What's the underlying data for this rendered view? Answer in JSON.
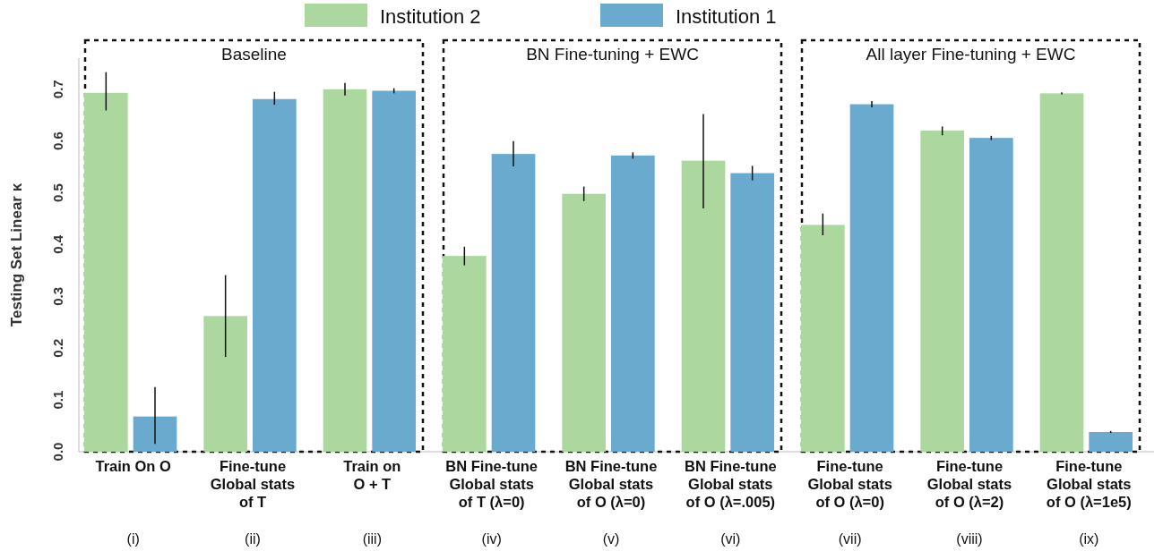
{
  "chart_data": {
    "type": "bar",
    "ylabel": "Testing Set Linear κ",
    "categories": [
      "Train On O",
      "Fine-tune\nGlobal stats\nof T",
      "Train on\nO + T",
      "BN Fine-tune\nGlobal stats\nof T (λ=0)",
      "BN Fine-tune\nGlobal stats\nof O (λ=0)",
      "BN Fine-tune\nGlobal stats\nof O (λ=.005)",
      "Fine-tune\nGlobal stats\nof O (λ=0)",
      "Fine-tune\nGlobal stats\nof O (λ=2)",
      "Fine-tune\nGlobal stats\nof O (λ=1e5)"
    ],
    "series": [
      {
        "name": "Institution 2",
        "color": "#acd8a0",
        "values": [
          0.693,
          0.262,
          0.7,
          0.378,
          0.498,
          0.562,
          0.438,
          0.62,
          0.692
        ],
        "errors": [
          [
            0.659,
            0.733
          ],
          [
            0.183,
            0.341
          ],
          [
            0.688,
            0.712
          ],
          [
            0.36,
            0.396
          ],
          [
            0.484,
            0.512
          ],
          [
            0.47,
            0.652
          ],
          [
            0.418,
            0.46
          ],
          [
            0.611,
            0.628
          ],
          [
            0.69,
            0.694
          ]
        ]
      },
      {
        "name": "Institution 1",
        "color": "#6aaacf",
        "values": [
          0.068,
          0.681,
          0.697,
          0.575,
          0.572,
          0.538,
          0.671,
          0.606,
          0.038
        ],
        "errors": [
          [
            0.015,
            0.125
          ],
          [
            0.67,
            0.695
          ],
          [
            0.692,
            0.702
          ],
          [
            0.551,
            0.6
          ],
          [
            0.566,
            0.578
          ],
          [
            0.524,
            0.552
          ],
          [
            0.665,
            0.677
          ],
          [
            0.602,
            0.61
          ],
          [
            0.036,
            0.04
          ]
        ]
      }
    ],
    "ylim": [
      0,
      0.76
    ],
    "yticks": [
      {
        "value": 0,
        "label": "0.0"
      },
      0.1,
      0.2,
      0.3,
      0.4,
      0.5,
      0.6,
      0.7
    ],
    "legend": "top",
    "grid": false,
    "annotations": [
      "Baseline",
      "BN Fine-tuning + EWC",
      "All layer Fine-tuning + EWC",
      "(i)",
      "(ii)",
      "(iii)",
      "(iv)",
      "(v)",
      "(vi)",
      "(vii)",
      "(viii)",
      "(ix)"
    ]
  }
}
